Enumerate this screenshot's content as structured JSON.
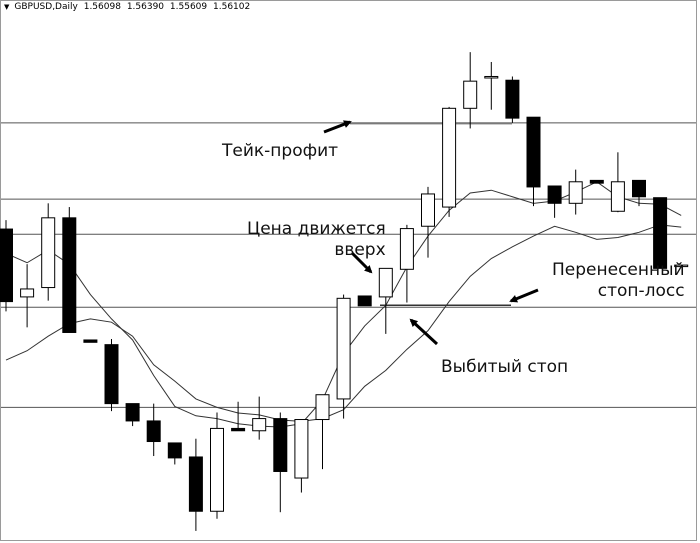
{
  "header": {
    "symbol": "GBPUSD,Daily",
    "quote_values": [
      "1.56098",
      "1.56390",
      "1.55609",
      "1.56102"
    ]
  },
  "annotations": {
    "take_profit": "Тейк-профит",
    "price_moving_up_line1": "Цена движется",
    "price_moving_up_line2": "вверх",
    "moved_stop_line1": "Перенесенный",
    "moved_stop_line2": "стоп-лосс",
    "knocked_out_stop": "Выбитый стоп"
  },
  "colors": {
    "bull_fill": "#ffffff",
    "bear_fill": "#000000",
    "candle_outline": "#000000",
    "level_line": "#555555",
    "ma_line": "#333333",
    "background": "#ffffff"
  },
  "chart_data": {
    "type": "candlestick",
    "title": "",
    "xlabel": "",
    "ylabel": "",
    "grid": false,
    "ylim": [
      0,
      100
    ],
    "note": "y values are relative price levels on a 0-100 scale; no price axis is printed",
    "candles": [
      {
        "o": 61.1,
        "h": 63.0,
        "l": 43.5,
        "c": 45.6
      },
      {
        "o": 46.6,
        "h": 53.6,
        "l": 40.1,
        "c": 48.3
      },
      {
        "o": 48.6,
        "h": 66.6,
        "l": 45.8,
        "c": 63.5
      },
      {
        "o": 63.5,
        "h": 65.8,
        "l": 39.0,
        "c": 39.0
      },
      {
        "o": 37.4,
        "h": 37.4,
        "l": 36.9,
        "c": 36.9
      },
      {
        "o": 36.4,
        "h": 37.6,
        "l": 22.2,
        "c": 23.8
      },
      {
        "o": 23.8,
        "h": 23.8,
        "l": 19.0,
        "c": 20.1
      },
      {
        "o": 20.1,
        "h": 23.8,
        "l": 12.6,
        "c": 15.7
      },
      {
        "o": 15.4,
        "h": 15.4,
        "l": 10.8,
        "c": 12.2
      },
      {
        "o": 12.4,
        "h": 16.3,
        "l": -3.4,
        "c": 0.8
      },
      {
        "o": 0.8,
        "h": 21.9,
        "l": -0.8,
        "c": 18.5
      },
      {
        "o": 18.5,
        "h": 24.2,
        "l": 18.0,
        "c": 18.0
      },
      {
        "o": 18.0,
        "h": 25.3,
        "l": 16.1,
        "c": 20.6
      },
      {
        "o": 20.6,
        "h": 21.9,
        "l": 0.6,
        "c": 9.3
      },
      {
        "o": 7.9,
        "h": 20.4,
        "l": 4.8,
        "c": 20.4
      },
      {
        "o": 20.4,
        "h": 25.7,
        "l": 9.8,
        "c": 25.7
      },
      {
        "o": 24.8,
        "h": 47.1,
        "l": 20.6,
        "c": 46.3
      },
      {
        "o": 46.8,
        "h": 46.8,
        "l": 44.7,
        "c": 44.7
      },
      {
        "o": 46.6,
        "h": 52.7,
        "l": 38.7,
        "c": 52.7
      },
      {
        "o": 52.5,
        "h": 62.0,
        "l": 45.4,
        "c": 61.2
      },
      {
        "o": 61.7,
        "h": 70.1,
        "l": 55.0,
        "c": 68.6
      },
      {
        "o": 65.8,
        "h": 87.2,
        "l": 63.7,
        "c": 86.9
      },
      {
        "o": 86.9,
        "h": 98.9,
        "l": 82.6,
        "c": 92.7
      },
      {
        "o": 93.7,
        "h": 96.8,
        "l": 86.6,
        "c": 93.7
      },
      {
        "o": 92.9,
        "h": 93.7,
        "l": 83.8,
        "c": 84.8
      },
      {
        "o": 85.0,
        "h": 85.0,
        "l": 66.0,
        "c": 70.1
      },
      {
        "o": 70.3,
        "h": 70.3,
        "l": 63.5,
        "c": 66.6
      },
      {
        "o": 66.6,
        "h": 73.8,
        "l": 64.2,
        "c": 71.2
      },
      {
        "o": 71.5,
        "h": 71.5,
        "l": 70.9,
        "c": 70.9
      },
      {
        "o": 64.9,
        "h": 77.5,
        "l": 64.7,
        "c": 71.2
      },
      {
        "o": 71.5,
        "h": 71.5,
        "l": 66.0,
        "c": 68.0
      },
      {
        "o": 67.8,
        "h": 67.8,
        "l": 52.7,
        "c": 52.7
      },
      {
        "o": 53.4,
        "h": 53.4,
        "l": 53.4,
        "c": 53.4
      }
    ],
    "moving_average_fast": [
      [
        0,
        55.9
      ],
      [
        1,
        53.9
      ],
      [
        2,
        56.6
      ],
      [
        3,
        53.6
      ],
      [
        4,
        47.1
      ],
      [
        5,
        41.9
      ],
      [
        6,
        37.4
      ],
      [
        7,
        29.8
      ],
      [
        8,
        23.2
      ],
      [
        9,
        21.2
      ],
      [
        10,
        20.6
      ],
      [
        11,
        19.5
      ],
      [
        12,
        19.0
      ],
      [
        13,
        18.8
      ],
      [
        14,
        19.5
      ],
      [
        15,
        24.6
      ],
      [
        16,
        34.5
      ],
      [
        17,
        40.4
      ],
      [
        18,
        44.8
      ],
      [
        19,
        53.0
      ],
      [
        20,
        59.6
      ],
      [
        21,
        65.1
      ],
      [
        22,
        68.8
      ],
      [
        23,
        69.4
      ],
      [
        24,
        68.0
      ],
      [
        25,
        66.6
      ],
      [
        26,
        67.1
      ],
      [
        27,
        69.0
      ],
      [
        28,
        71.2
      ],
      [
        29,
        68.0
      ],
      [
        30,
        66.6
      ],
      [
        31,
        66.4
      ],
      [
        32,
        64.0
      ]
    ],
    "moving_average_slow": [
      [
        0,
        33.1
      ],
      [
        1,
        35.1
      ],
      [
        2,
        38.2
      ],
      [
        3,
        40.9
      ],
      [
        4,
        41.9
      ],
      [
        5,
        41.2
      ],
      [
        6,
        38.2
      ],
      [
        7,
        32.1
      ],
      [
        8,
        28.6
      ],
      [
        9,
        24.8
      ],
      [
        10,
        23.0
      ],
      [
        11,
        21.8
      ],
      [
        12,
        21.4
      ],
      [
        13,
        20.3
      ],
      [
        14,
        20.0
      ],
      [
        15,
        20.6
      ],
      [
        16,
        22.5
      ],
      [
        17,
        27.5
      ],
      [
        18,
        30.9
      ],
      [
        19,
        35.4
      ],
      [
        20,
        39.4
      ],
      [
        21,
        45.6
      ],
      [
        22,
        51.0
      ],
      [
        23,
        54.8
      ],
      [
        24,
        57.3
      ],
      [
        25,
        59.6
      ],
      [
        26,
        61.7
      ],
      [
        27,
        60.4
      ],
      [
        28,
        58.9
      ],
      [
        29,
        59.3
      ],
      [
        30,
        60.4
      ],
      [
        31,
        62.0
      ],
      [
        32,
        61.5
      ]
    ],
    "horizontal_levels": [
      {
        "y": 83.8,
        "label": "Тейк-профит"
      },
      {
        "y": 67.5,
        "label": ""
      },
      {
        "y": 60.0,
        "label": ""
      },
      {
        "y": 44.4,
        "label": "Перенесенный стоп-лосс"
      },
      {
        "y": 23.0,
        "label": "Выбитый стоп"
      }
    ]
  }
}
